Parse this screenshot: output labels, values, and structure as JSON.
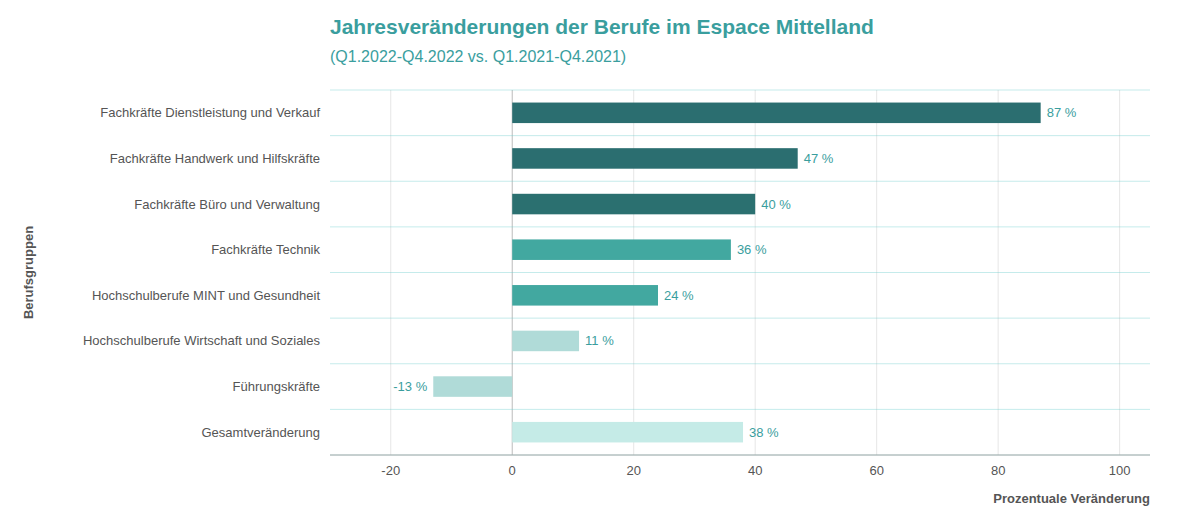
{
  "chart_data": {
    "type": "bar",
    "orientation": "horizontal",
    "title": "Jahresveränderungen der Berufe im Espace Mittelland",
    "subtitle": "(Q1.2022-Q4.2022 vs. Q1.2021-Q4.2021)",
    "xlabel": "Prozentuale Veränderung",
    "ylabel": "Berufsgruppen",
    "categories": [
      "Fachkräfte Dienstleistung und Verkauf",
      "Fachkräfte Handwerk und Hilfskräfte",
      "Fachkräfte Büro und Verwaltung",
      "Fachkräfte Technik",
      "Hochschulberufe MINT und Gesundheit",
      "Hochschulberufe Wirtschaft und Soziales",
      "Führungskräfte",
      "Gesamtveränderung"
    ],
    "values": [
      87,
      47,
      40,
      36,
      24,
      11,
      -13,
      38
    ],
    "value_labels": [
      "87 %",
      "47 %",
      "40 %",
      "36 %",
      "24 %",
      "11 %",
      "-13 %",
      "38 %"
    ],
    "data_labels": true,
    "colors": [
      "#2b6e70",
      "#2b6e70",
      "#2b7070",
      "#42a8a0",
      "#42a8a0",
      "#b0dbd8",
      "#b0dbd8",
      "#c5ebe7"
    ],
    "xlim": [
      -30,
      105
    ],
    "xticks": [
      -20,
      0,
      20,
      40,
      60,
      80,
      100
    ],
    "grid": true
  }
}
